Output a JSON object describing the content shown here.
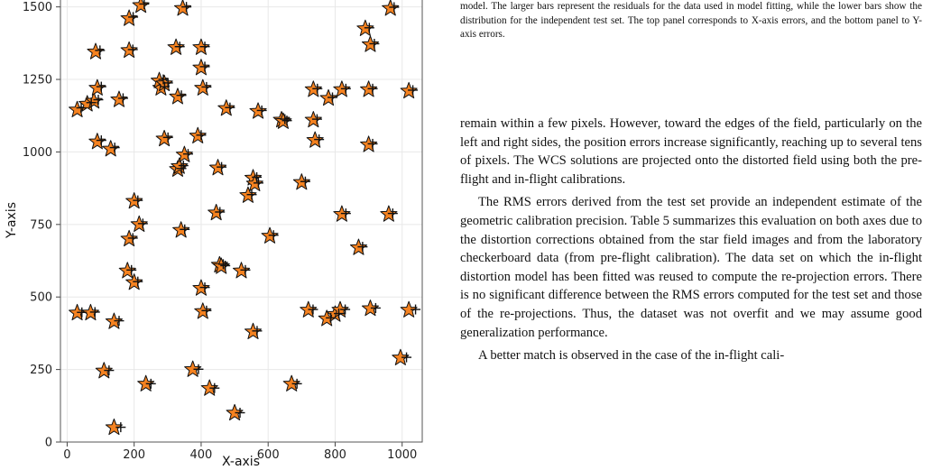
{
  "caption_tail": "model. The larger bars represent the residuals for the data used in model fitting, while the lower bars show the distribution for the independent test set. The top panel corresponds to X-axis errors, and the bottom panel to Y-axis errors.",
  "paragraphs": [
    "remain within a few pixels. However, toward the edges of the field, particularly on the left and right sides, the position errors increase significantly, reaching up to several tens of pixels. The WCS solutions are projected onto the distorted field using both the pre-flight and in-flight calibrations.",
    "The RMS errors derived from the test set provide an independent estimate of the geometric calibration precision. Table 5 summarizes this evaluation on both axes due to the distortion corrections obtained from the star field images and from the laboratory checkerboard data (from pre-flight calibration). The data set on which the in-flight distortion model has been fitted was reused to compute the re-projection errors. There is no significant difference between the RMS errors computed for the test set and those of the re-projections. Thus, the dataset was not overfit and we may assume good generalization performance.",
    "A better match is observed in the case of the in-flight cali-"
  ],
  "chart_data": {
    "type": "scatter",
    "title": "",
    "xlabel": "X-axis",
    "ylabel": "Y-axis",
    "xlim": [
      -20,
      1060
    ],
    "ylim": [
      0,
      1530
    ],
    "xticks": [
      0,
      200,
      400,
      600,
      800,
      1000
    ],
    "yticks": [
      0,
      250,
      500,
      750,
      1000,
      1250,
      1500
    ],
    "grid": true,
    "colors": {
      "star": "#f58220",
      "edge": "#111111",
      "grid": "#e8e8e8"
    },
    "series": [
      {
        "marker": "star",
        "points": [
          [
            30,
            1145
          ],
          [
            60,
            1165
          ],
          [
            85,
            1345
          ],
          [
            80,
            1175
          ],
          [
            90,
            1220
          ],
          [
            90,
            1035
          ],
          [
            130,
            1010
          ],
          [
            155,
            1180
          ],
          [
            185,
            1460
          ],
          [
            185,
            1350
          ],
          [
            220,
            1505
          ],
          [
            280,
            1220
          ],
          [
            275,
            1245
          ],
          [
            290,
            1235
          ],
          [
            290,
            1045
          ],
          [
            325,
            1360
          ],
          [
            330,
            1190
          ],
          [
            345,
            1495
          ],
          [
            330,
            940
          ],
          [
            335,
            950
          ],
          [
            350,
            990
          ],
          [
            400,
            1360
          ],
          [
            400,
            1290
          ],
          [
            390,
            1055
          ],
          [
            405,
            1220
          ],
          [
            475,
            1150
          ],
          [
            570,
            1140
          ],
          [
            640,
            1110
          ],
          [
            645,
            1105
          ],
          [
            735,
            1215
          ],
          [
            735,
            1110
          ],
          [
            740,
            1040
          ],
          [
            780,
            1185
          ],
          [
            820,
            1215
          ],
          [
            900,
            1215
          ],
          [
            890,
            1425
          ],
          [
            905,
            1370
          ],
          [
            900,
            1025
          ],
          [
            965,
            1495
          ],
          [
            1020,
            1210
          ],
          [
            30,
            445
          ],
          [
            70,
            445
          ],
          [
            140,
            415
          ],
          [
            110,
            245
          ],
          [
            140,
            50
          ],
          [
            180,
            590
          ],
          [
            185,
            700
          ],
          [
            200,
            550
          ],
          [
            200,
            830
          ],
          [
            215,
            750
          ],
          [
            235,
            200
          ],
          [
            340,
            730
          ],
          [
            375,
            250
          ],
          [
            400,
            530
          ],
          [
            405,
            450
          ],
          [
            425,
            185
          ],
          [
            445,
            790
          ],
          [
            450,
            945
          ],
          [
            455,
            610
          ],
          [
            460,
            605
          ],
          [
            500,
            100
          ],
          [
            520,
            590
          ],
          [
            540,
            850
          ],
          [
            555,
            910
          ],
          [
            560,
            890
          ],
          [
            555,
            380
          ],
          [
            605,
            710
          ],
          [
            670,
            200
          ],
          [
            700,
            895
          ],
          [
            720,
            455
          ],
          [
            775,
            425
          ],
          [
            800,
            440
          ],
          [
            815,
            455
          ],
          [
            820,
            785
          ],
          [
            870,
            670
          ],
          [
            905,
            460
          ],
          [
            960,
            785
          ],
          [
            995,
            290
          ],
          [
            1020,
            455
          ]
        ]
      },
      {
        "marker": "plus",
        "points": [
          [
            42,
            1152
          ],
          [
            72,
            1170
          ],
          [
            98,
            1350
          ],
          [
            93,
            1180
          ],
          [
            102,
            1225
          ],
          [
            102,
            1040
          ],
          [
            142,
            1015
          ],
          [
            167,
            1185
          ],
          [
            197,
            1465
          ],
          [
            196,
            1353
          ],
          [
            230,
            1510
          ],
          [
            291,
            1225
          ],
          [
            287,
            1250
          ],
          [
            301,
            1238
          ],
          [
            301,
            1050
          ],
          [
            336,
            1363
          ],
          [
            341,
            1195
          ],
          [
            356,
            1500
          ],
          [
            341,
            943
          ],
          [
            347,
            953
          ],
          [
            361,
            993
          ],
          [
            411,
            1363
          ],
          [
            411,
            1294
          ],
          [
            400,
            1058
          ],
          [
            416,
            1224
          ],
          [
            486,
            1153
          ],
          [
            581,
            1143
          ],
          [
            650,
            1113
          ],
          [
            656,
            1108
          ],
          [
            747,
            1218
          ],
          [
            746,
            1113
          ],
          [
            752,
            1043
          ],
          [
            792,
            1188
          ],
          [
            832,
            1218
          ],
          [
            912,
            1218
          ],
          [
            902,
            1428
          ],
          [
            917,
            1373
          ],
          [
            912,
            1028
          ],
          [
            976,
            1499
          ],
          [
            1032,
            1213
          ],
          [
            44,
            447
          ],
          [
            83,
            448
          ],
          [
            155,
            418
          ],
          [
            125,
            247
          ],
          [
            160,
            51
          ],
          [
            192,
            593
          ],
          [
            196,
            703
          ],
          [
            211,
            553
          ],
          [
            211,
            833
          ],
          [
            226,
            753
          ],
          [
            250,
            201
          ],
          [
            351,
            733
          ],
          [
            392,
            251
          ],
          [
            411,
            533
          ],
          [
            416,
            453
          ],
          [
            440,
            186
          ],
          [
            456,
            793
          ],
          [
            461,
            948
          ],
          [
            466,
            613
          ],
          [
            472,
            608
          ],
          [
            516,
            101
          ],
          [
            532,
            593
          ],
          [
            551,
            853
          ],
          [
            566,
            913
          ],
          [
            571,
            893
          ],
          [
            567,
            383
          ],
          [
            616,
            713
          ],
          [
            686,
            201
          ],
          [
            711,
            898
          ],
          [
            734,
            457
          ],
          [
            787,
            428
          ],
          [
            811,
            443
          ],
          [
            830,
            457
          ],
          [
            832,
            788
          ],
          [
            882,
            673
          ],
          [
            921,
            462
          ],
          [
            972,
            788
          ],
          [
            1013,
            292
          ],
          [
            1040,
            457
          ]
        ]
      }
    ]
  }
}
